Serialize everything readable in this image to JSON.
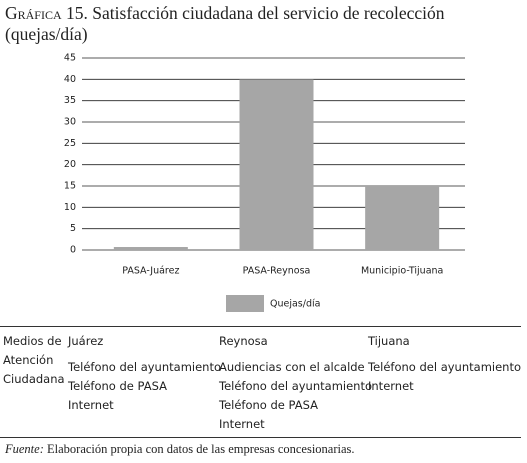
{
  "chart_data": {
    "type": "bar",
    "label": "Gráfica 15.",
    "title": "Satisfacción ciudadana del servicio de recolección (quejas/día)",
    "categories": [
      "PASA-Juárez",
      "PASA-Reynosa",
      "Municipio-Tijuana"
    ],
    "series": [
      {
        "name": "Quejas/día",
        "color": "#a6a6a6",
        "values": [
          0.7,
          40,
          15
        ]
      }
    ],
    "ylim": [
      0,
      45
    ],
    "yticks": [
      0,
      5,
      10,
      15,
      20,
      25,
      30,
      35,
      40,
      45
    ],
    "grid": true,
    "legend": "bottom"
  },
  "table": {
    "row_header": "Medios de Atención Ciudadana",
    "columns": [
      {
        "name": "Juárez",
        "items": [
          "Teléfono del ayuntamiento",
          "Teléfono de PASA",
          "Internet"
        ]
      },
      {
        "name": "Reynosa",
        "items": [
          "Audiencias con el alcalde",
          "Teléfono del ayuntamiento",
          "Teléfono de PASA",
          "Internet"
        ]
      },
      {
        "name": "Tijuana",
        "items": [
          "Teléfono del ayuntamiento",
          "Internet"
        ]
      }
    ]
  },
  "source": {
    "label": "Fuente:",
    "text": "Elaboración propia con datos de las empresas concesionarias."
  }
}
